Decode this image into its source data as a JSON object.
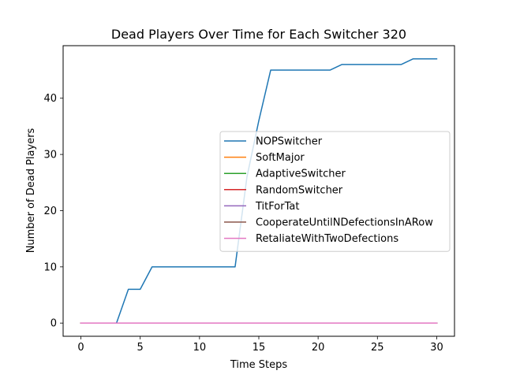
{
  "chart_data": {
    "type": "line",
    "title": "Dead Players Over Time for Each Switcher 320",
    "xlabel": "Time Steps",
    "ylabel": "Number of Dead Players",
    "xlim": [
      -1.5,
      31.5
    ],
    "ylim": [
      -2.35,
      49.35
    ],
    "xticks": [
      0,
      5,
      10,
      15,
      20,
      25,
      30
    ],
    "yticks": [
      0,
      10,
      20,
      30,
      40
    ],
    "grid": false,
    "legend_position": "center-right",
    "x": [
      0,
      1,
      2,
      3,
      4,
      5,
      6,
      7,
      8,
      9,
      10,
      11,
      12,
      13,
      14,
      15,
      16,
      17,
      18,
      19,
      20,
      21,
      22,
      23,
      24,
      25,
      26,
      27,
      28,
      29,
      30
    ],
    "series": [
      {
        "name": "NOPSwitcher",
        "color": "#1f77b4",
        "values": [
          0,
          0,
          0,
          0,
          6,
          6,
          10,
          10,
          10,
          10,
          10,
          10,
          10,
          10,
          26,
          36,
          45,
          45,
          45,
          45,
          45,
          45,
          46,
          46,
          46,
          46,
          46,
          46,
          47,
          47,
          47
        ]
      },
      {
        "name": "SoftMajor",
        "color": "#ff7f0e",
        "values": [
          0,
          0,
          0,
          0,
          0,
          0,
          0,
          0,
          0,
          0,
          0,
          0,
          0,
          0,
          0,
          0,
          0,
          0,
          0,
          0,
          0,
          0,
          0,
          0,
          0,
          0,
          0,
          0,
          0,
          0,
          0
        ]
      },
      {
        "name": "AdaptiveSwitcher",
        "color": "#2ca02c",
        "values": [
          0,
          0,
          0,
          0,
          0,
          0,
          0,
          0,
          0,
          0,
          0,
          0,
          0,
          0,
          0,
          0,
          0,
          0,
          0,
          0,
          0,
          0,
          0,
          0,
          0,
          0,
          0,
          0,
          0,
          0,
          0
        ]
      },
      {
        "name": "RandomSwitcher",
        "color": "#d62728",
        "values": [
          0,
          0,
          0,
          0,
          0,
          0,
          0,
          0,
          0,
          0,
          0,
          0,
          0,
          0,
          0,
          0,
          0,
          0,
          0,
          0,
          0,
          0,
          0,
          0,
          0,
          0,
          0,
          0,
          0,
          0,
          0
        ]
      },
      {
        "name": "TitForTat",
        "color": "#9467bd",
        "values": [
          0,
          0,
          0,
          0,
          0,
          0,
          0,
          0,
          0,
          0,
          0,
          0,
          0,
          0,
          0,
          0,
          0,
          0,
          0,
          0,
          0,
          0,
          0,
          0,
          0,
          0,
          0,
          0,
          0,
          0,
          0
        ]
      },
      {
        "name": "CooperateUntilNDefectionsInARow",
        "color": "#8c564b",
        "values": [
          0,
          0,
          0,
          0,
          0,
          0,
          0,
          0,
          0,
          0,
          0,
          0,
          0,
          0,
          0,
          0,
          0,
          0,
          0,
          0,
          0,
          0,
          0,
          0,
          0,
          0,
          0,
          0,
          0,
          0,
          0
        ]
      },
      {
        "name": "RetaliateWithTwoDefections",
        "color": "#e377c2",
        "values": [
          0,
          0,
          0,
          0,
          0,
          0,
          0,
          0,
          0,
          0,
          0,
          0,
          0,
          0,
          0,
          0,
          0,
          0,
          0,
          0,
          0,
          0,
          0,
          0,
          0,
          0,
          0,
          0,
          0,
          0,
          0
        ]
      }
    ]
  }
}
